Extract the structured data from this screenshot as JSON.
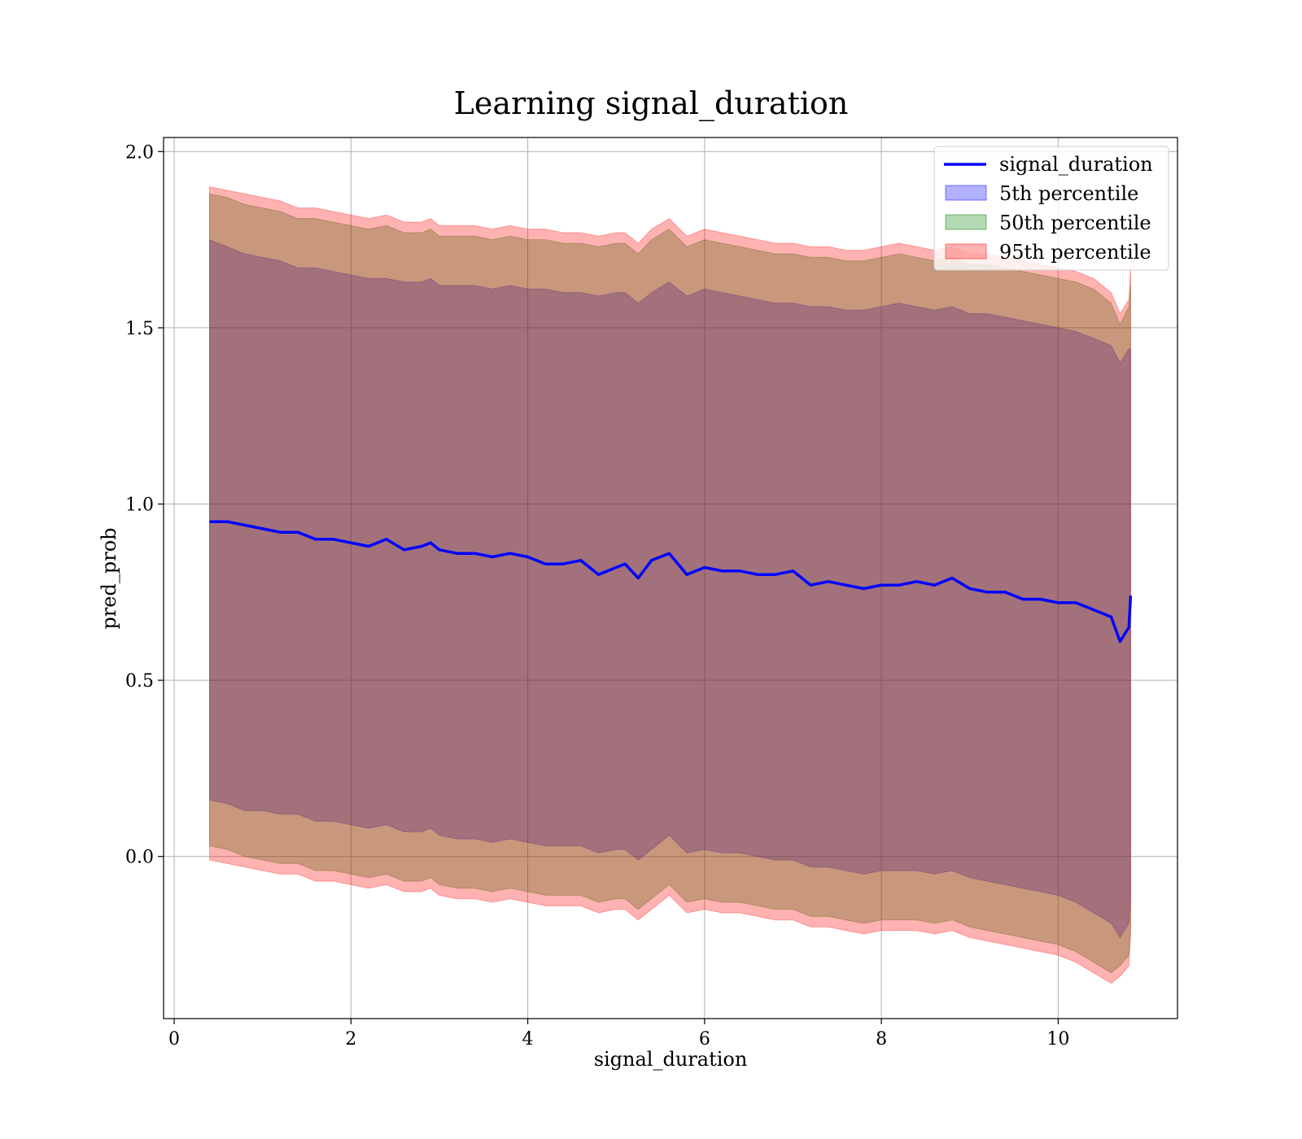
{
  "chart_data": {
    "type": "area",
    "title": "Learning signal_duration",
    "xlabel": "signal_duration",
    "ylabel": "pred_prob",
    "xlim": [
      -0.12,
      11.35
    ],
    "ylim": [
      -0.46,
      2.04
    ],
    "xticks": [
      0,
      2,
      4,
      6,
      8,
      10
    ],
    "yticks": [
      0.0,
      0.5,
      1.0,
      1.5,
      2.0
    ],
    "xtick_labels": [
      "0",
      "2",
      "4",
      "6",
      "8",
      "10"
    ],
    "ytick_labels": [
      "0.0",
      "0.5",
      "1.0",
      "1.5",
      "2.0"
    ],
    "grid": true,
    "legend_position": "top-right",
    "x": [
      0.4,
      0.6,
      0.8,
      1.0,
      1.2,
      1.4,
      1.6,
      1.8,
      2.0,
      2.2,
      2.4,
      2.6,
      2.8,
      2.9,
      3.0,
      3.2,
      3.4,
      3.6,
      3.8,
      4.0,
      4.2,
      4.4,
      4.6,
      4.8,
      5.0,
      5.1,
      5.25,
      5.4,
      5.6,
      5.8,
      6.0,
      6.2,
      6.4,
      6.6,
      6.8,
      7.0,
      7.2,
      7.4,
      7.6,
      7.8,
      8.0,
      8.2,
      8.4,
      8.6,
      8.8,
      9.0,
      9.2,
      9.4,
      9.6,
      9.8,
      10.0,
      10.2,
      10.4,
      10.6,
      10.7,
      10.8,
      10.82
    ],
    "series": [
      {
        "name": "signal_duration",
        "kind": "line",
        "color": "#0000ff",
        "values": [
          0.95,
          0.95,
          0.94,
          0.93,
          0.92,
          0.92,
          0.9,
          0.9,
          0.89,
          0.88,
          0.9,
          0.87,
          0.88,
          0.89,
          0.87,
          0.86,
          0.86,
          0.85,
          0.86,
          0.85,
          0.83,
          0.83,
          0.84,
          0.8,
          0.82,
          0.83,
          0.79,
          0.84,
          0.86,
          0.8,
          0.82,
          0.81,
          0.81,
          0.8,
          0.8,
          0.81,
          0.77,
          0.78,
          0.77,
          0.76,
          0.77,
          0.77,
          0.78,
          0.77,
          0.79,
          0.76,
          0.75,
          0.75,
          0.73,
          0.73,
          0.72,
          0.72,
          0.7,
          0.68,
          0.61,
          0.65,
          0.74
        ]
      },
      {
        "name": "5th percentile",
        "kind": "band",
        "color": "#0000ff",
        "opacity": 0.3,
        "upper": [
          1.75,
          1.73,
          1.71,
          1.7,
          1.69,
          1.67,
          1.67,
          1.66,
          1.65,
          1.64,
          1.64,
          1.63,
          1.63,
          1.64,
          1.62,
          1.62,
          1.62,
          1.61,
          1.62,
          1.61,
          1.61,
          1.6,
          1.6,
          1.59,
          1.6,
          1.6,
          1.57,
          1.6,
          1.63,
          1.59,
          1.61,
          1.6,
          1.59,
          1.58,
          1.57,
          1.57,
          1.56,
          1.56,
          1.55,
          1.55,
          1.56,
          1.57,
          1.56,
          1.55,
          1.56,
          1.54,
          1.54,
          1.53,
          1.52,
          1.51,
          1.5,
          1.49,
          1.47,
          1.45,
          1.4,
          1.44,
          1.44
        ],
        "lower": [
          0.16,
          0.15,
          0.13,
          0.13,
          0.12,
          0.12,
          0.1,
          0.1,
          0.09,
          0.08,
          0.09,
          0.07,
          0.07,
          0.08,
          0.06,
          0.05,
          0.05,
          0.04,
          0.05,
          0.04,
          0.03,
          0.03,
          0.03,
          0.01,
          0.02,
          0.02,
          -0.01,
          0.02,
          0.06,
          0.01,
          0.02,
          0.01,
          0.01,
          0.0,
          -0.01,
          -0.01,
          -0.03,
          -0.03,
          -0.04,
          -0.05,
          -0.04,
          -0.04,
          -0.04,
          -0.05,
          -0.04,
          -0.06,
          -0.07,
          -0.08,
          -0.09,
          -0.1,
          -0.11,
          -0.13,
          -0.16,
          -0.19,
          -0.23,
          -0.19,
          -0.12
        ]
      },
      {
        "name": "50th percentile",
        "kind": "band",
        "color": "#008000",
        "opacity": 0.3,
        "upper": [
          1.88,
          1.87,
          1.85,
          1.84,
          1.83,
          1.81,
          1.81,
          1.8,
          1.79,
          1.78,
          1.79,
          1.77,
          1.77,
          1.78,
          1.76,
          1.76,
          1.76,
          1.75,
          1.76,
          1.75,
          1.75,
          1.74,
          1.74,
          1.73,
          1.74,
          1.74,
          1.71,
          1.75,
          1.78,
          1.73,
          1.75,
          1.74,
          1.73,
          1.72,
          1.71,
          1.71,
          1.7,
          1.7,
          1.69,
          1.69,
          1.7,
          1.71,
          1.7,
          1.69,
          1.7,
          1.68,
          1.68,
          1.67,
          1.66,
          1.65,
          1.64,
          1.63,
          1.61,
          1.57,
          1.51,
          1.56,
          1.62
        ],
        "lower": [
          0.03,
          0.02,
          0.0,
          -0.01,
          -0.02,
          -0.02,
          -0.04,
          -0.04,
          -0.05,
          -0.06,
          -0.05,
          -0.07,
          -0.07,
          -0.06,
          -0.08,
          -0.09,
          -0.09,
          -0.1,
          -0.09,
          -0.1,
          -0.11,
          -0.11,
          -0.11,
          -0.13,
          -0.12,
          -0.12,
          -0.15,
          -0.12,
          -0.08,
          -0.13,
          -0.12,
          -0.13,
          -0.13,
          -0.14,
          -0.15,
          -0.15,
          -0.17,
          -0.17,
          -0.18,
          -0.19,
          -0.18,
          -0.18,
          -0.18,
          -0.19,
          -0.18,
          -0.2,
          -0.21,
          -0.22,
          -0.23,
          -0.24,
          -0.25,
          -0.27,
          -0.3,
          -0.33,
          -0.31,
          -0.28,
          -0.2
        ]
      },
      {
        "name": "95th percentile",
        "kind": "band",
        "color": "#ff0000",
        "opacity": 0.3,
        "upper": [
          1.9,
          1.89,
          1.88,
          1.87,
          1.86,
          1.84,
          1.84,
          1.83,
          1.82,
          1.81,
          1.82,
          1.8,
          1.8,
          1.81,
          1.79,
          1.79,
          1.79,
          1.78,
          1.79,
          1.78,
          1.78,
          1.77,
          1.77,
          1.76,
          1.77,
          1.77,
          1.74,
          1.78,
          1.81,
          1.76,
          1.78,
          1.77,
          1.76,
          1.75,
          1.74,
          1.74,
          1.73,
          1.73,
          1.72,
          1.72,
          1.73,
          1.74,
          1.73,
          1.72,
          1.73,
          1.71,
          1.71,
          1.7,
          1.69,
          1.68,
          1.67,
          1.66,
          1.64,
          1.6,
          1.54,
          1.58,
          1.68
        ],
        "lower": [
          -0.01,
          -0.02,
          -0.03,
          -0.04,
          -0.05,
          -0.05,
          -0.07,
          -0.07,
          -0.08,
          -0.09,
          -0.08,
          -0.1,
          -0.1,
          -0.09,
          -0.11,
          -0.12,
          -0.12,
          -0.13,
          -0.12,
          -0.13,
          -0.14,
          -0.14,
          -0.14,
          -0.16,
          -0.15,
          -0.15,
          -0.18,
          -0.15,
          -0.11,
          -0.16,
          -0.15,
          -0.16,
          -0.16,
          -0.17,
          -0.18,
          -0.18,
          -0.2,
          -0.2,
          -0.21,
          -0.22,
          -0.21,
          -0.21,
          -0.21,
          -0.22,
          -0.21,
          -0.23,
          -0.24,
          -0.25,
          -0.26,
          -0.27,
          -0.28,
          -0.3,
          -0.33,
          -0.36,
          -0.34,
          -0.31,
          -0.22
        ]
      }
    ]
  }
}
